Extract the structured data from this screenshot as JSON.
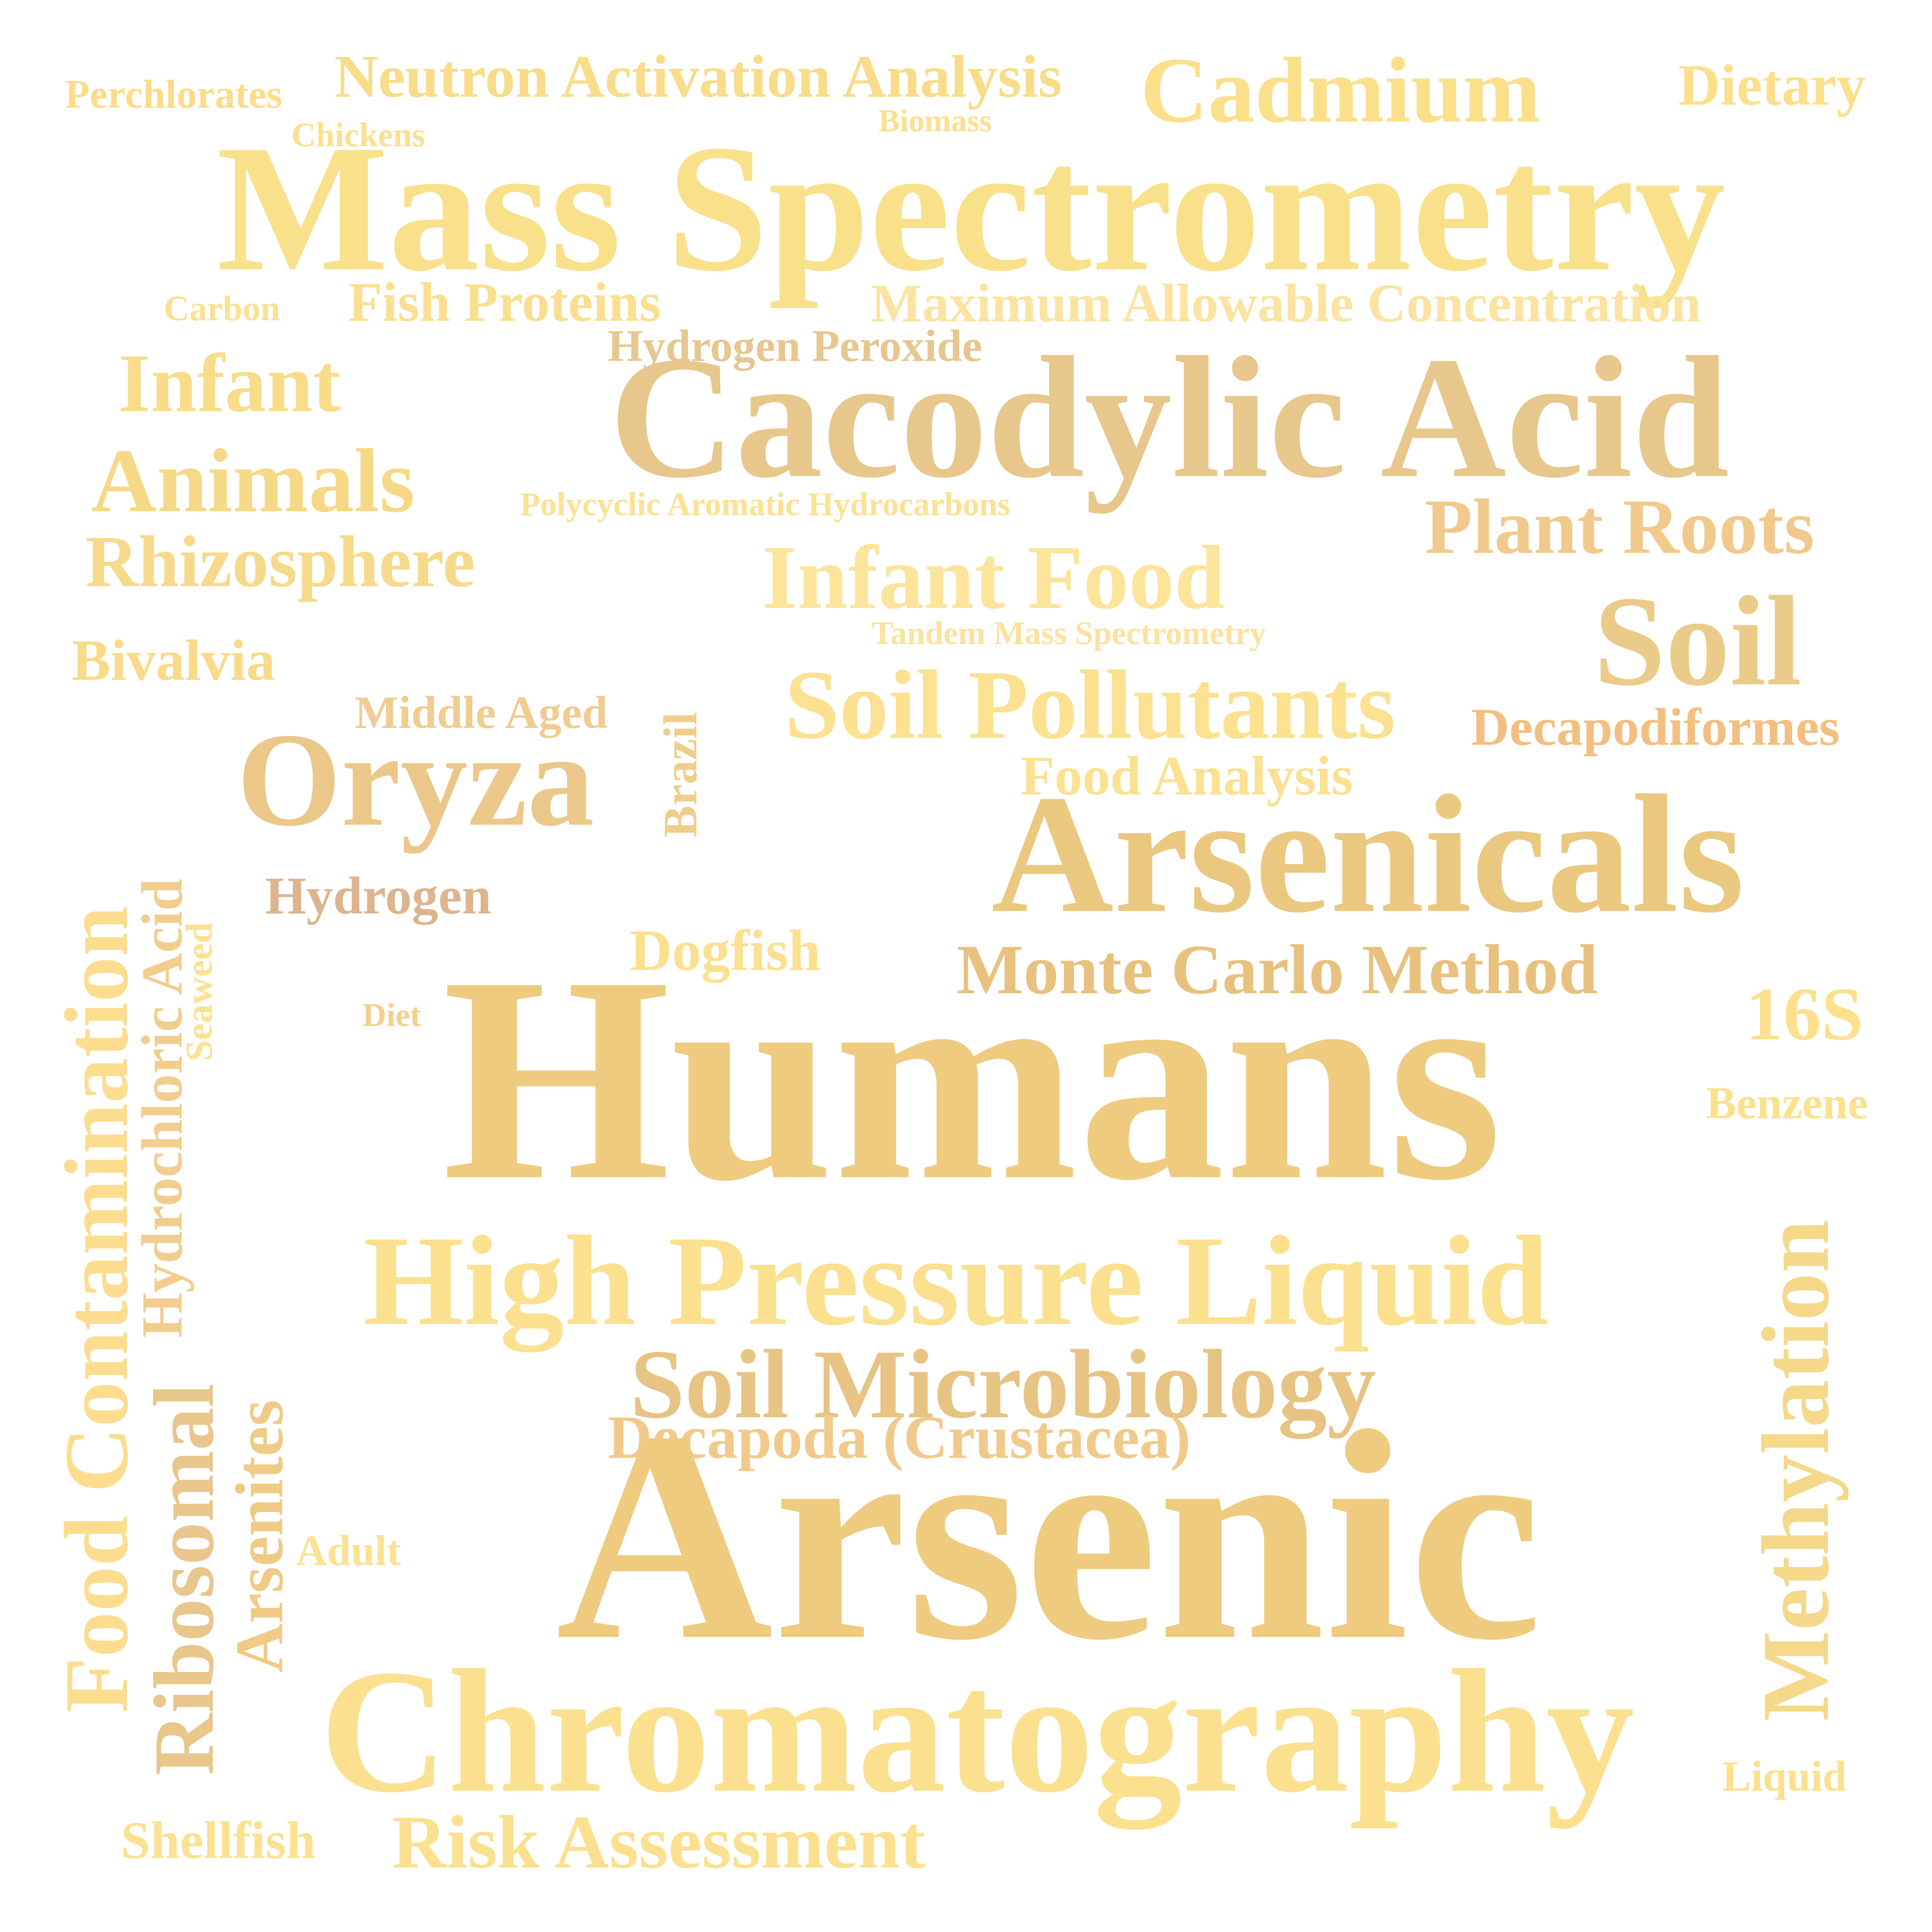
{
  "words": [
    {
      "text": "Perchlorates",
      "color": "#fcdc8a"
    },
    {
      "text": "Neutron Activation Analysis",
      "color": "#f8dc8a"
    },
    {
      "text": "Cadmium",
      "color": "#fbdf8b"
    },
    {
      "text": "Dietary",
      "color": "#fbdf8b"
    },
    {
      "text": "Chickens",
      "color": "#fbe08f"
    },
    {
      "text": "Biomass",
      "color": "#fbe08f"
    },
    {
      "text": "Mass Spectrometry",
      "color": "#f9e08b"
    },
    {
      "text": "Carbon",
      "color": "#fbe192"
    },
    {
      "text": "Fish Proteins",
      "color": "#fadf90"
    },
    {
      "text": "Maximum Allowable Concentration",
      "color": "#fbe3a1"
    },
    {
      "text": "Hydrogen Peroxide",
      "color": "#e6c790"
    },
    {
      "text": "Infant",
      "color": "#f8dc8a"
    },
    {
      "text": "Cacodylic Acid",
      "color": "#e7c78b"
    },
    {
      "text": "Animals",
      "color": "#f6d986"
    },
    {
      "text": "Polycyclic Aromatic Hydrocarbons",
      "color": "#fbe192"
    },
    {
      "text": "Plant Roots",
      "color": "#f2c98c"
    },
    {
      "text": "Rhizosphere",
      "color": "#f6d98a"
    },
    {
      "text": "Infant Food",
      "color": "#fce49b"
    },
    {
      "text": "Soil",
      "color": "#ebcb89"
    },
    {
      "text": "Tandem Mass Spectrometry",
      "color": "#fbe2a0"
    },
    {
      "text": "Bivalvia",
      "color": "#f8da88"
    },
    {
      "text": "Middle Aged",
      "color": "#f0cc92"
    },
    {
      "text": "Soil Pollutants",
      "color": "#fbe190"
    },
    {
      "text": "Decapodiformes",
      "color": "#f3bf80"
    },
    {
      "text": "Oryza",
      "color": "#ebc88a"
    },
    {
      "text": "Brazil",
      "color": "#f0cd8b"
    },
    {
      "text": "Food Analysis",
      "color": "#fbe190"
    },
    {
      "text": "Arsenicals",
      "color": "#ebc880"
    },
    {
      "text": "Hydrogen",
      "color": "#dcb48e"
    },
    {
      "text": "Dogfish",
      "color": "#fbe090"
    },
    {
      "text": "Monte Carlo Method",
      "color": "#e8c17f"
    },
    {
      "text": "Food Contamination",
      "color": "#fcdd90"
    },
    {
      "text": "Hydrochloric Acid",
      "color": "#f1cd8e"
    },
    {
      "text": "Seaweed",
      "color": "#fbe192"
    },
    {
      "text": "16S",
      "color": "#fce08e"
    },
    {
      "text": "Diet",
      "color": "#f3cf8d"
    },
    {
      "text": "Humans",
      "color": "#efcb80"
    },
    {
      "text": "Benzene",
      "color": "#fbe08e"
    },
    {
      "text": "High Pressure Liquid",
      "color": "#fbe08f"
    },
    {
      "text": "Methylation",
      "color": "#f6d88a"
    },
    {
      "text": "Soil Microbiology",
      "color": "#e7c384"
    },
    {
      "text": "Decapoda (Crustacea)",
      "color": "#f1ca8b"
    },
    {
      "text": "Ribosomal",
      "color": "#e8c68c"
    },
    {
      "text": "Arsenites",
      "color": "#efcb85"
    },
    {
      "text": "Adult",
      "color": "#fbe192"
    },
    {
      "text": "Arsenic",
      "color": "#efcb80"
    },
    {
      "text": "Chromatography",
      "color": "#fbe08f"
    },
    {
      "text": "Liquid",
      "color": "#fbe08e"
    },
    {
      "text": "Shellfish",
      "color": "#fbe192"
    },
    {
      "text": "Risk Assessment",
      "color": "#fbe08f"
    }
  ]
}
